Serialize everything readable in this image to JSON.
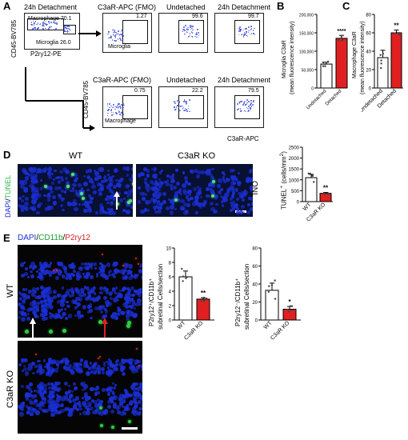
{
  "panels": {
    "A": {
      "letter": "A",
      "gating": {
        "title": "24h Detachment",
        "macrophage_label": "Macrophage",
        "macrophage_value": "70.1",
        "microglia_label": "Microglia",
        "microglia_value": "26.0",
        "xlabel": "P2ry12-PE",
        "ylabel": "CD45-BV785"
      },
      "row1": {
        "side_label": "Microglia",
        "plots": [
          {
            "title": "C3aR-APC (FMO)",
            "value": "1.27"
          },
          {
            "title": "Undetached",
            "value": "99.6"
          },
          {
            "title": "24h Detachment",
            "value": "99.7"
          }
        ]
      },
      "row2": {
        "side_label": "Macrophage",
        "plots": [
          {
            "title": "C3aR-APC (FMO)",
            "value": "0.75"
          },
          {
            "title": "Undetached",
            "value": "22.2"
          },
          {
            "title": "24h Detachment",
            "value": "79.5"
          }
        ],
        "ylabel": "CD45-BV785",
        "xlabel": "C3aR-APC"
      }
    },
    "B": {
      "letter": "B",
      "ylabel_line1": "Microglia C3aR",
      "ylabel_line2": "(mean fluorescence intensity)",
      "ticks": [
        "0",
        "50,000",
        "100,000",
        "150,000",
        "200,000"
      ],
      "significance": "****"
    },
    "C": {
      "letter": "C",
      "ylabel_line1": "Macrophage C3aR",
      "ylabel_line2": "(mean fluorescence intensity)",
      "ticks": [
        "0",
        "20",
        "40",
        "60",
        "80"
      ],
      "significance": "**"
    },
    "D": {
      "letter": "D",
      "stain_dapi": "DAPI",
      "stain_sep": "/",
      "stain_tunel": "TUNEL",
      "wt_label": "WT",
      "ko_label": "C3aR KO",
      "onl_label": "ONL",
      "ylabel_prefix": "TUNEL",
      "ylabel_sup": "+",
      "ylabel_suffix": " (cells/mm",
      "ylabel_sup2": "2",
      "ylabel_end": ")",
      "ticks": [
        "0",
        "500",
        "1000",
        "1500",
        "2000",
        "2500"
      ],
      "significance": "**"
    },
    "E": {
      "letter": "E",
      "stain_dapi": "DAPI",
      "stain_cd11b": "CD11b",
      "stain_p2ry12": "P2ry12",
      "sep": "/",
      "wt_label": "WT",
      "ko_label": "C3aR KO",
      "left_ylabel_line1": "P2ry12⁺/CD11b⁺",
      "left_ylabel_line2": "subretinal Cells/section",
      "left_ticks": [
        "0",
        "2",
        "4",
        "6",
        "8",
        "10"
      ],
      "left_significance": "**",
      "right_ylabel_line1": "P2ry12⁻/CD11b⁺",
      "right_ylabel_line2": "subretinal Cells/section",
      "right_ticks": [
        "0",
        "20",
        "40",
        "60",
        "80"
      ],
      "right_significance": "*"
    }
  },
  "colors": {
    "wt_bar": "#ffffff",
    "ko_bar": "#e02020",
    "dapi": "#1a2fd6",
    "tunel": "#4fe08a",
    "cd11b": "#2ecc40",
    "p2ry12": "#e53030",
    "flow_dots": "#3a4bd4"
  },
  "chart_data": [
    {
      "type": "bar",
      "panel": "B",
      "categories": [
        "Undetached",
        "Detached"
      ],
      "values": [
        65000,
        135000
      ],
      "errors": [
        5000,
        8000
      ],
      "ylim": [
        0,
        200000
      ]
    },
    {
      "type": "bar",
      "panel": "C",
      "categories": [
        "Undetached",
        "Detached"
      ],
      "values": [
        33,
        60
      ],
      "errors": [
        8,
        3
      ],
      "ylim": [
        0,
        80
      ]
    },
    {
      "type": "bar",
      "panel": "D",
      "categories": [
        "WT",
        "C3aR KO"
      ],
      "values": [
        1100,
        380
      ],
      "errors": [
        150,
        40
      ],
      "ylim": [
        0,
        2500
      ]
    },
    {
      "type": "bar",
      "panel": "E-left",
      "categories": [
        "WT",
        "C3aR KO"
      ],
      "values": [
        6.0,
        2.9
      ],
      "errors": [
        0.8,
        0.2
      ],
      "ylim": [
        0,
        10
      ]
    },
    {
      "type": "bar",
      "panel": "E-right",
      "categories": [
        "WT",
        "C3aR KO"
      ],
      "values": [
        33,
        12
      ],
      "errors": [
        8,
        3
      ],
      "ylim": [
        0,
        80
      ]
    }
  ]
}
